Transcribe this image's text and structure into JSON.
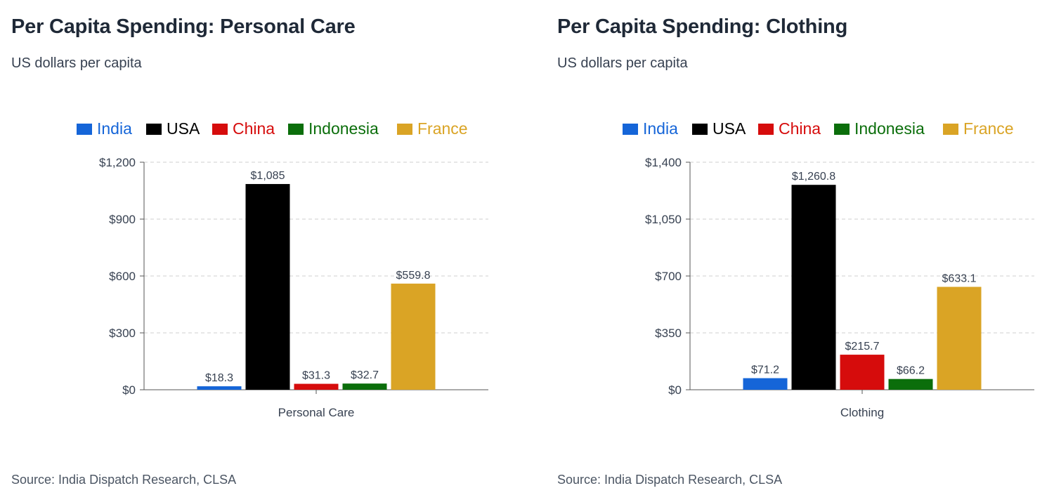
{
  "chart_data": [
    {
      "type": "bar",
      "title": "Per Capita Spending: Personal Care",
      "subtitle": "US dollars per capita",
      "categories": [
        "Personal Care"
      ],
      "series": [
        {
          "name": "India",
          "values": [
            18.3
          ],
          "labels": [
            "$18.3"
          ],
          "color": "#1565d8"
        },
        {
          "name": "USA",
          "values": [
            1085
          ],
          "labels": [
            "$1,085"
          ],
          "color": "#000000"
        },
        {
          "name": "China",
          "values": [
            31.3
          ],
          "labels": [
            "$31.3"
          ],
          "color": "#d60c0c"
        },
        {
          "name": "Indonesia",
          "values": [
            32.7
          ],
          "labels": [
            "$32.7"
          ],
          "color": "#0b6e0b"
        },
        {
          "name": "France",
          "values": [
            559.8
          ],
          "labels": [
            "$559.8"
          ],
          "color": "#daa425"
        }
      ],
      "ylim": [
        0,
        1200
      ],
      "yticks": [
        0,
        300,
        600,
        900,
        1200
      ],
      "ytick_labels": [
        "$0",
        "$300",
        "$600",
        "$900",
        "$1,200"
      ],
      "grid": true,
      "legend_position": "top",
      "source": "Source: India Dispatch Research, CLSA"
    },
    {
      "type": "bar",
      "title": "Per Capita Spending: Clothing",
      "subtitle": "US dollars per capita",
      "categories": [
        "Clothing"
      ],
      "series": [
        {
          "name": "India",
          "values": [
            71.2
          ],
          "labels": [
            "$71.2"
          ],
          "color": "#1565d8"
        },
        {
          "name": "USA",
          "values": [
            1260.8
          ],
          "labels": [
            "$1,260.8"
          ],
          "color": "#000000"
        },
        {
          "name": "China",
          "values": [
            215.7
          ],
          "labels": [
            "$215.7"
          ],
          "color": "#d60c0c"
        },
        {
          "name": "Indonesia",
          "values": [
            66.2
          ],
          "labels": [
            "$66.2"
          ],
          "color": "#0b6e0b"
        },
        {
          "name": "France",
          "values": [
            633.1
          ],
          "labels": [
            "$633.1"
          ],
          "color": "#daa425"
        }
      ],
      "ylim": [
        0,
        1400
      ],
      "yticks": [
        0,
        350,
        700,
        1050,
        1400
      ],
      "ytick_labels": [
        "$0",
        "$350",
        "$700",
        "$1,050",
        "$1,400"
      ],
      "grid": true,
      "legend_position": "top",
      "source": "Source: India Dispatch Research, CLSA"
    }
  ]
}
